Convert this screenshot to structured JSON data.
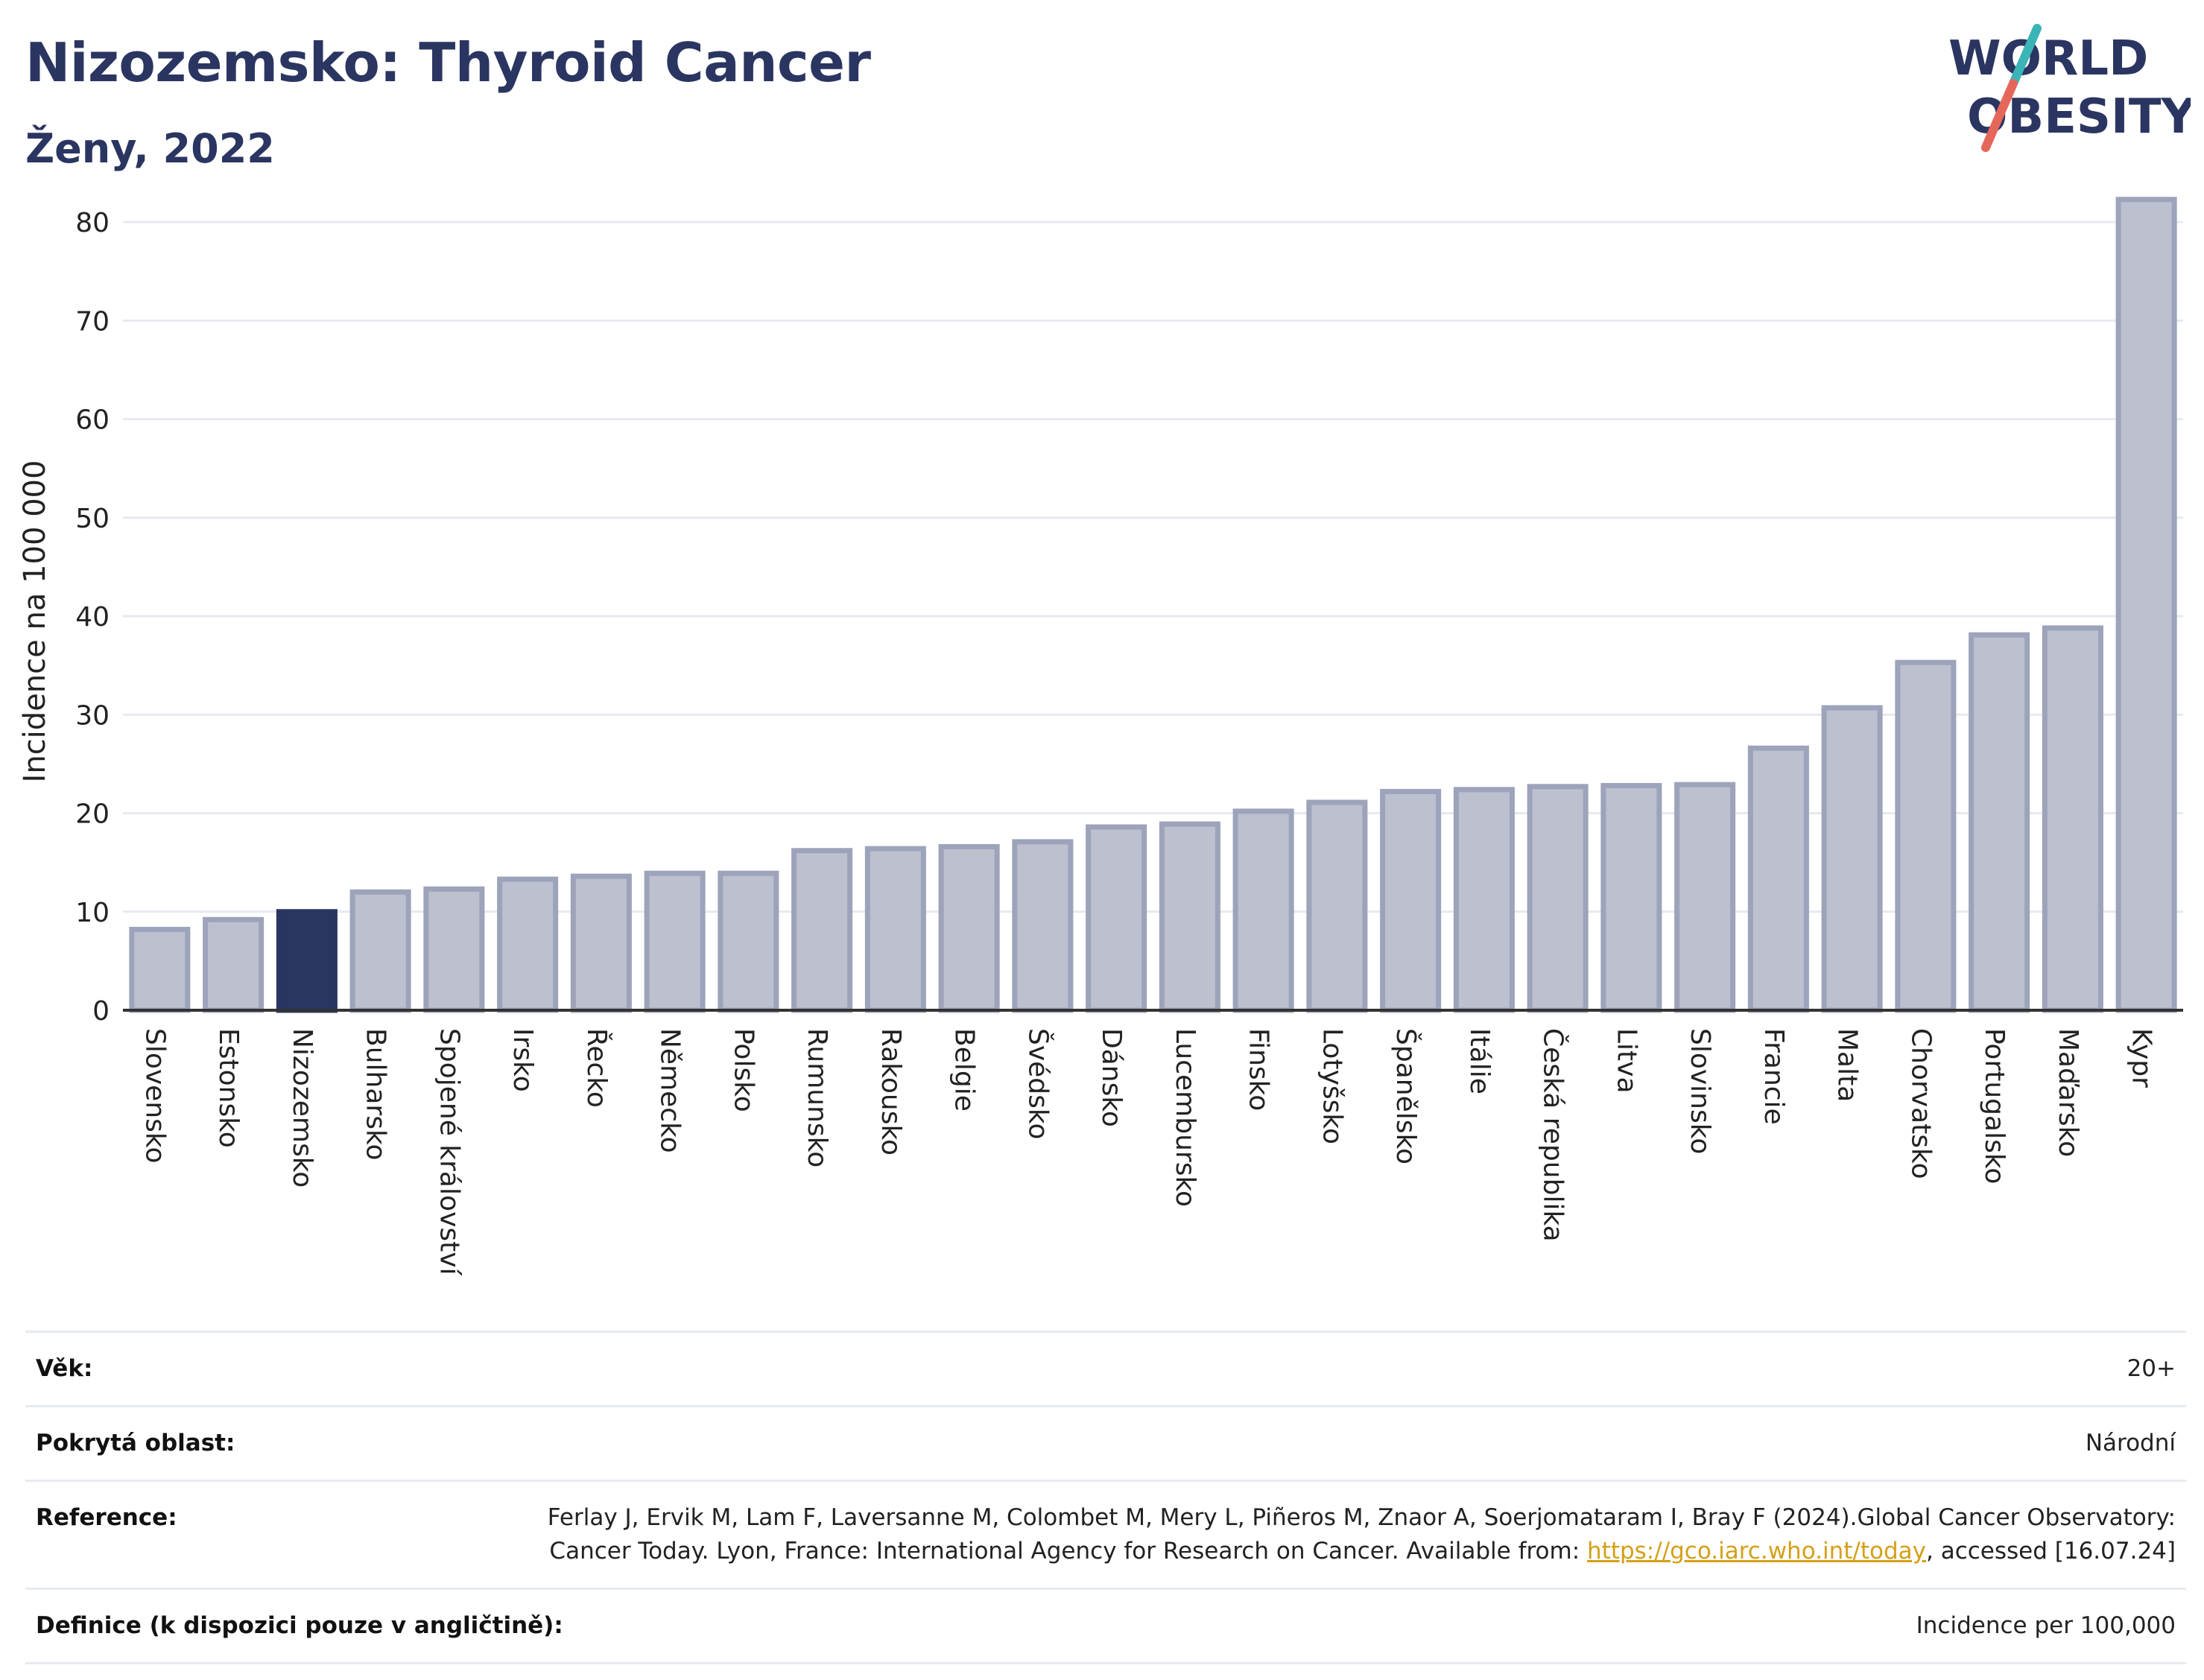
{
  "header": {
    "title": "Nizozemsko: Thyroid Cancer",
    "subtitle": "Ženy, 2022"
  },
  "logo": {
    "line1": "WORLD",
    "line2": "OBESITY"
  },
  "colors": {
    "highlight": "#2b3561",
    "bar_fill": "#bcc0cf",
    "bar_stroke": "#9da3ba",
    "grid": "#e6e9ef",
    "logo_teal": "#3bb4b8",
    "logo_coral": "#e5675a"
  },
  "chart_data": {
    "type": "bar",
    "title": "Nizozemsko: Thyroid Cancer",
    "subtitle": "Ženy, 2022",
    "xlabel": "",
    "ylabel": "Incidence na 100 000",
    "ylim": [
      0,
      85
    ],
    "yticks": [
      0,
      10,
      20,
      30,
      40,
      50,
      60,
      70,
      80
    ],
    "grid": true,
    "highlight_category": "Nizozemsko",
    "categories": [
      "Slovensko",
      "Estonsko",
      "Nizozemsko",
      "Bulharsko",
      "Spojené království",
      "Irsko",
      "Řecko",
      "Německo",
      "Polsko",
      "Rumunsko",
      "Rakousko",
      "Belgie",
      "Švédsko",
      "Dánsko",
      "Lucembursko",
      "Finsko",
      "Lotyšsko",
      "Španělsko",
      "Itálie",
      "Česká republika",
      "Litva",
      "Slovinsko",
      "Francie",
      "Malta",
      "Chorvatsko",
      "Portugalsko",
      "Maďarsko",
      "Kypr"
    ],
    "values": [
      8.2,
      9.2,
      10.0,
      12.0,
      12.3,
      13.3,
      13.6,
      13.9,
      13.9,
      16.2,
      16.4,
      16.6,
      17.1,
      18.6,
      18.9,
      20.2,
      21.1,
      22.2,
      22.4,
      22.7,
      22.8,
      22.9,
      26.6,
      30.7,
      35.3,
      38.1,
      38.8,
      82.3
    ]
  },
  "info": {
    "rows": [
      {
        "label": "Věk:",
        "value": "20+"
      },
      {
        "label": "Pokrytá oblast:",
        "value": "Národní"
      },
      {
        "label": "Reference:",
        "value": "Ferlay J, Ervik M, Lam F, Laversanne M, Colombet M, Mery L, Piñeros M, Znaor A, Soerjomataram I, Bray F (2024).Global Cancer Observatory: Cancer Today. Lyon, France: International Agency for Research on Cancer. Available from: ",
        "link": "https://gco.iarc.who.int/today",
        "suffix": ", accessed [16.07.24]"
      },
      {
        "label": "Definice (k dispozici pouze v angličtině):",
        "value": "Incidence per 100,000"
      }
    ]
  }
}
